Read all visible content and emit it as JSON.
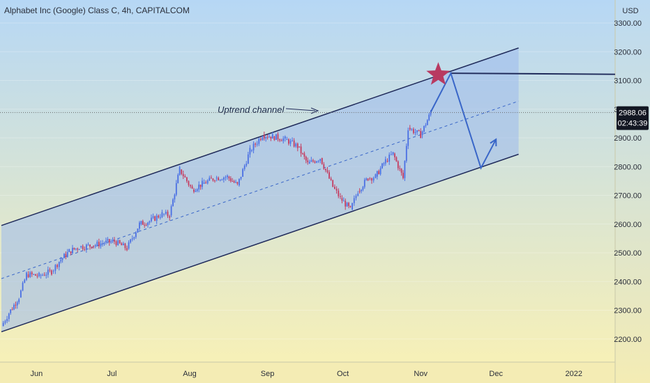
{
  "header": {
    "title": "Alphabet Inc (Google) Class C, 4h, CAPITALCOM"
  },
  "chart_data": {
    "type": "candlestick",
    "y_axis": {
      "unit_label": "USD",
      "ticks": [
        "3300.00",
        "3200.00",
        "3100.00",
        "3000.00",
        "2900.00",
        "2800.00",
        "2700.00",
        "2600.00",
        "2500.00",
        "2400.00",
        "2300.00",
        "2200.00"
      ],
      "range": [
        2140,
        3340
      ]
    },
    "x_axis": {
      "ticks": [
        "Jun",
        "Jul",
        "Aug",
        "Sep",
        "Oct",
        "Nov",
        "Dec",
        "2022"
      ],
      "range_dates": [
        "2021-05-18",
        "2022-01-12"
      ]
    },
    "last_price": {
      "value": 2988.06,
      "label": "2988.06",
      "countdown": "02:43:39"
    },
    "annotations": {
      "channel_label": "Uptrend channel",
      "channel_upper": [
        [
          "2021-05-18",
          2595
        ],
        [
          "2021-12-10",
          3213
        ]
      ],
      "channel_lower": [
        [
          "2021-05-18",
          2225
        ],
        [
          "2021-12-10",
          2843
        ]
      ],
      "channel_mid": [
        [
          "2021-05-18",
          2410
        ],
        [
          "2021-12-10",
          3028
        ]
      ],
      "resistance_level": 3125,
      "projection_path": [
        [
          "2021-11-05",
          2990
        ],
        [
          "2021-11-13",
          3125
        ],
        [
          "2021-11-25",
          2795
        ],
        [
          "2021-12-01",
          2895
        ]
      ],
      "star_at": [
        "2021-11-08",
        3120
      ]
    },
    "series_sample": [
      [
        "2021-05-18",
        2245
      ],
      [
        "2021-05-21",
        2290
      ],
      [
        "2021-05-25",
        2345
      ],
      [
        "2021-05-28",
        2425
      ],
      [
        "2021-06-02",
        2420
      ],
      [
        "2021-06-07",
        2435
      ],
      [
        "2021-06-10",
        2470
      ],
      [
        "2021-06-14",
        2505
      ],
      [
        "2021-06-18",
        2520
      ],
      [
        "2021-06-23",
        2525
      ],
      [
        "2021-06-28",
        2535
      ],
      [
        "2021-07-02",
        2540
      ],
      [
        "2021-07-07",
        2515
      ],
      [
        "2021-07-12",
        2600
      ],
      [
        "2021-07-16",
        2610
      ],
      [
        "2021-07-21",
        2635
      ],
      [
        "2021-07-24",
        2630
      ],
      [
        "2021-07-28",
        2790
      ],
      [
        "2021-08-02",
        2720
      ],
      [
        "2021-08-06",
        2740
      ],
      [
        "2021-08-11",
        2760
      ],
      [
        "2021-08-16",
        2765
      ],
      [
        "2021-08-20",
        2735
      ],
      [
        "2021-08-25",
        2855
      ],
      [
        "2021-08-30",
        2910
      ],
      [
        "2021-09-03",
        2905
      ],
      [
        "2021-09-08",
        2895
      ],
      [
        "2021-09-13",
        2870
      ],
      [
        "2021-09-17",
        2810
      ],
      [
        "2021-09-22",
        2830
      ],
      [
        "2021-09-27",
        2730
      ],
      [
        "2021-09-30",
        2690
      ],
      [
        "2021-10-04",
        2650
      ],
      [
        "2021-10-07",
        2715
      ],
      [
        "2021-10-11",
        2760
      ],
      [
        "2021-10-14",
        2765
      ],
      [
        "2021-10-18",
        2820
      ],
      [
        "2021-10-21",
        2845
      ],
      [
        "2021-10-25",
        2760
      ],
      [
        "2021-10-27",
        2935
      ],
      [
        "2021-11-01",
        2910
      ],
      [
        "2021-11-05",
        2988
      ]
    ]
  },
  "colors": {
    "up_candle": "#4a6fe3",
    "down_candle": "#c53b5f",
    "channel_fill": "#9db9ec",
    "line_dark": "#1f2a5a",
    "projection": "#3966c8",
    "star": "#b83a61",
    "price_tag": "#131722"
  }
}
